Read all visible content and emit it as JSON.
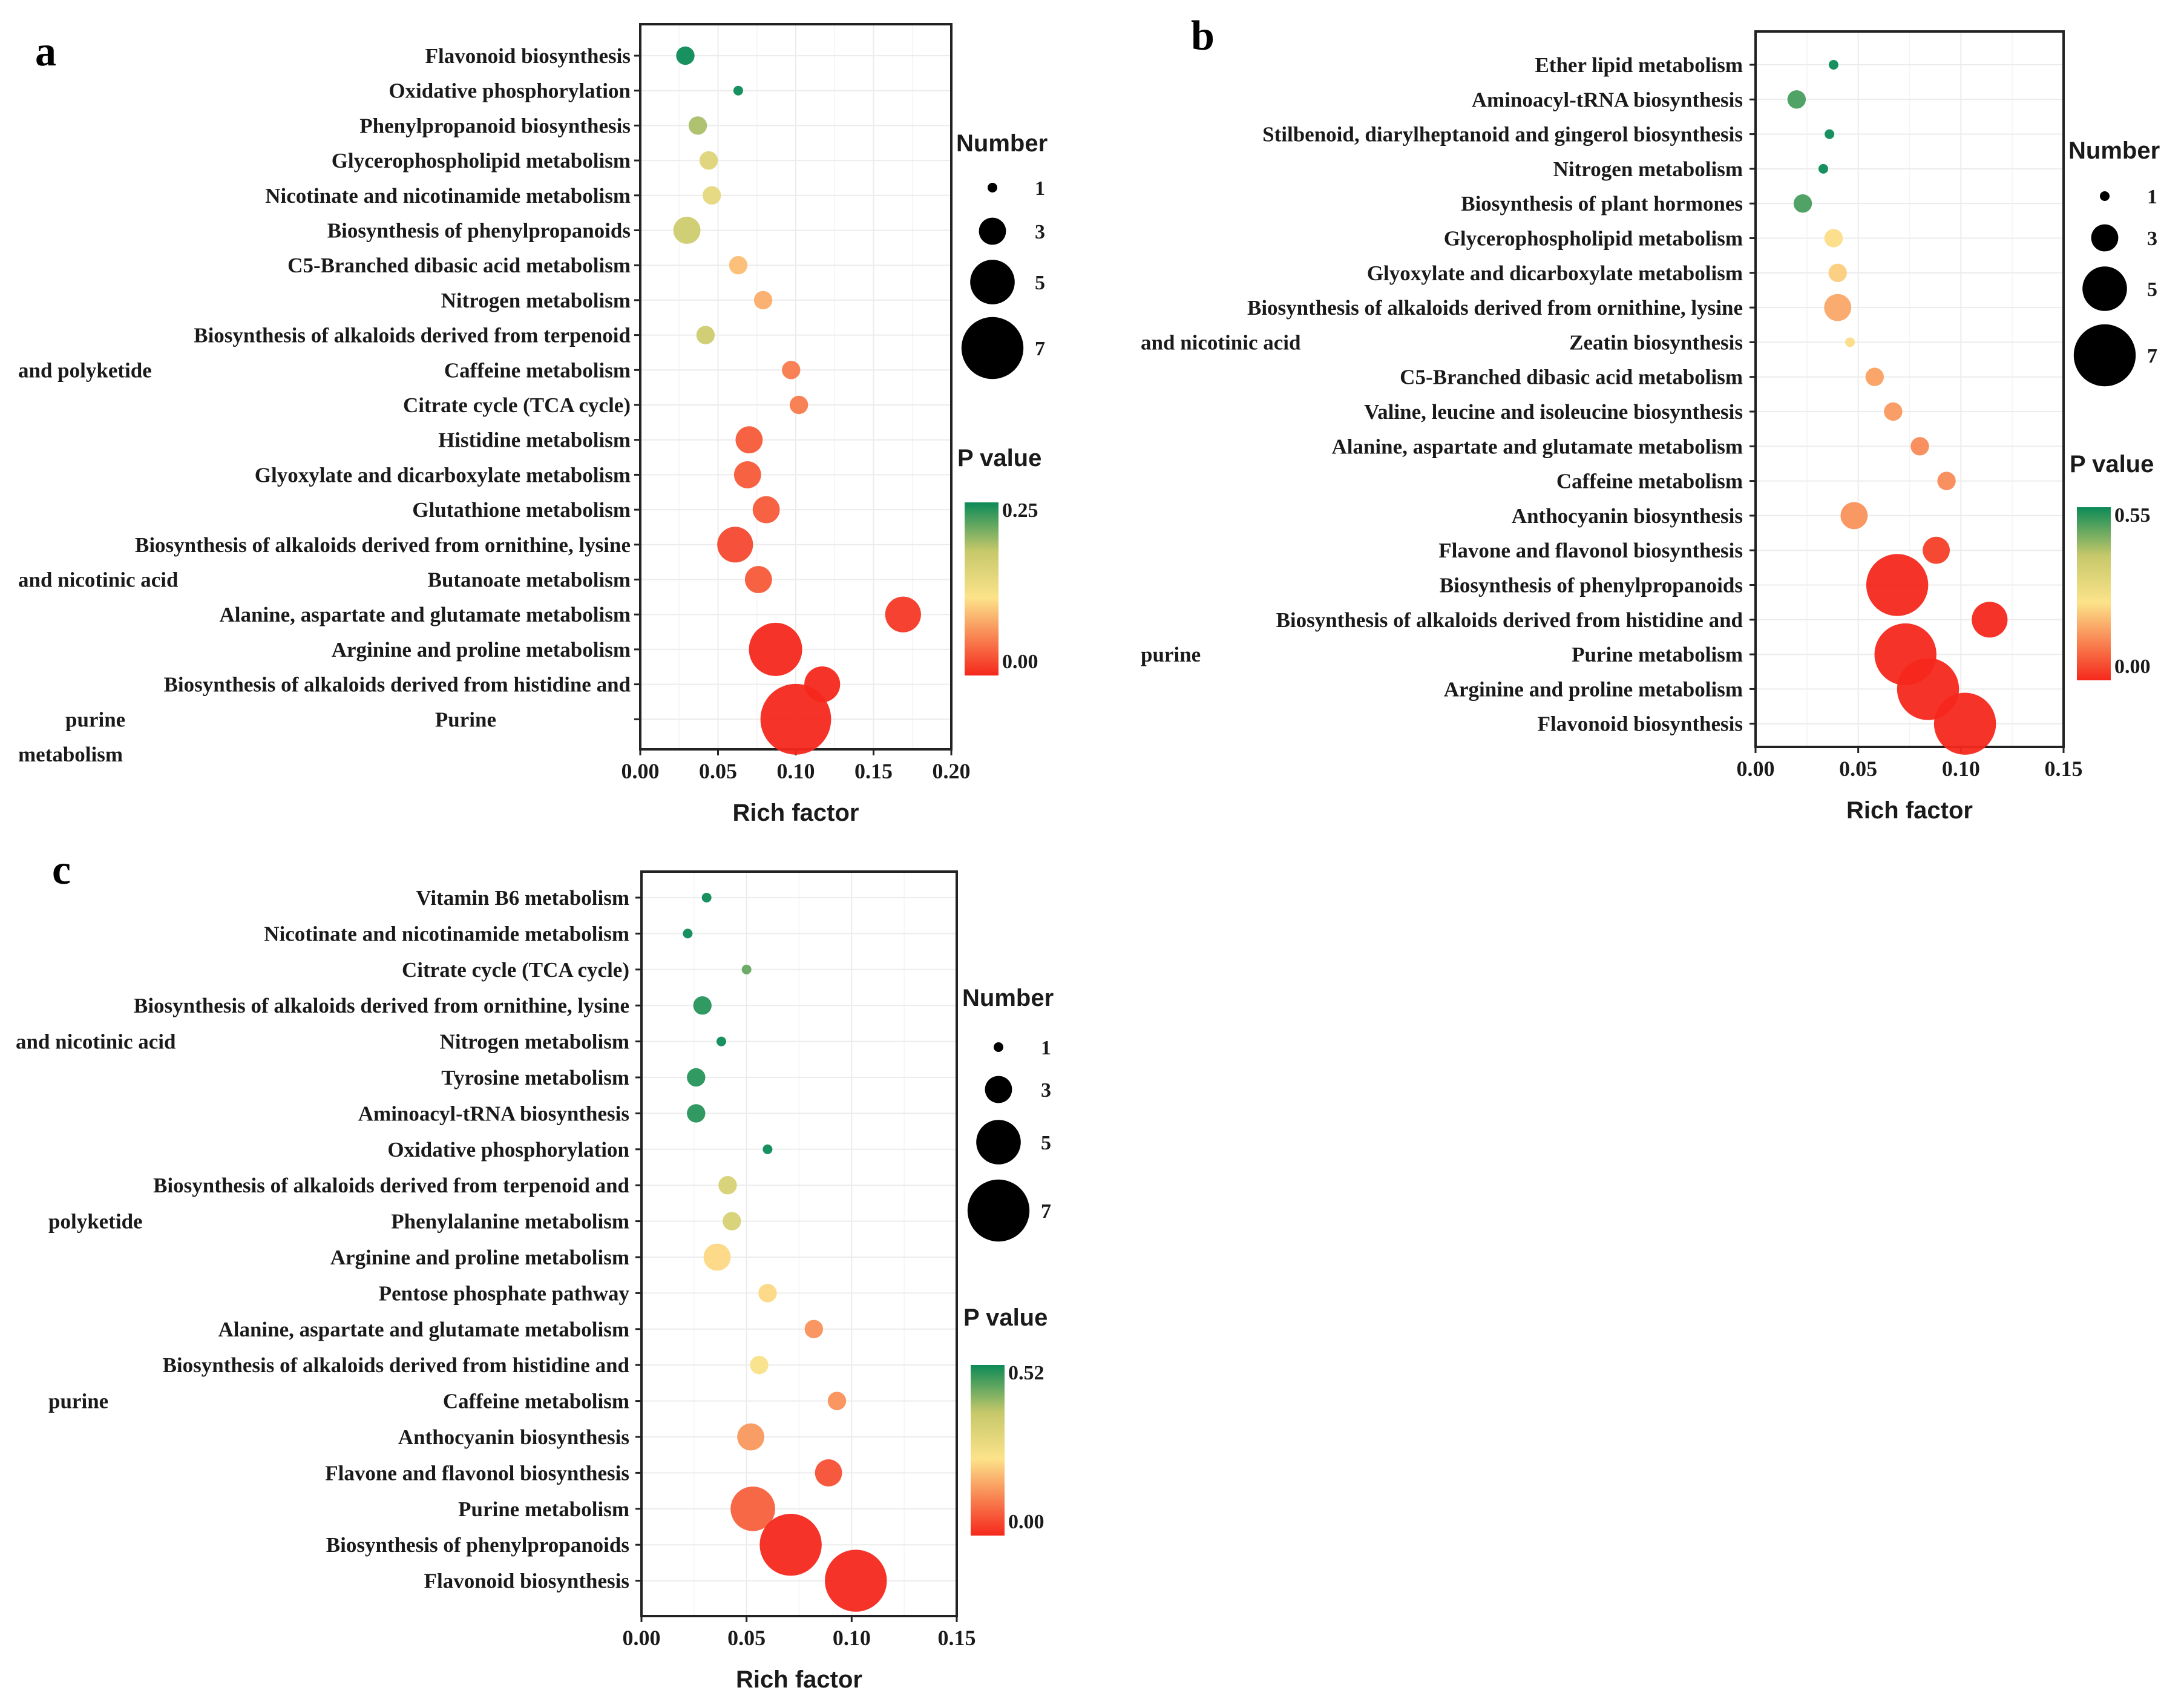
{
  "chart_data": [
    {
      "panel": "a",
      "type": "scatter",
      "xlabel": "Rich factor",
      "xticks": [
        "0.00",
        "0.05",
        "0.10",
        "0.15",
        "0.20"
      ],
      "xlim": [
        0,
        0.2
      ],
      "size_legend": {
        "title": "Number",
        "values": [
          "1",
          "3",
          "5",
          "7"
        ]
      },
      "color_legend": {
        "title": "P value",
        "max_label": "0.25",
        "min_label": "0.00"
      },
      "pathways": [
        {
          "name": "Flavonoid biosynthesis",
          "rich_factor": 0.029,
          "number": 2,
          "p_value": 0.25
        },
        {
          "name": "Oxidative phosphorylation",
          "rich_factor": 0.063,
          "number": 1,
          "p_value": 0.25
        },
        {
          "name": "Phenylpropanoid biosynthesis",
          "rich_factor": 0.037,
          "number": 2,
          "p_value": 0.19
        },
        {
          "name": "Glycerophospholipid metabolism",
          "rich_factor": 0.044,
          "number": 2,
          "p_value": 0.15
        },
        {
          "name": "Nicotinate and nicotinamide metabolism",
          "rich_factor": 0.046,
          "number": 2,
          "p_value": 0.14
        },
        {
          "name": "Biosynthesis of phenylpropanoids",
          "rich_factor": 0.03,
          "number": 3,
          "p_value": 0.17
        },
        {
          "name": "C5-Branched dibasic acid metabolism",
          "rich_factor": 0.063,
          "number": 2,
          "p_value": 0.09
        },
        {
          "name": "Nitrogen metabolism",
          "rich_factor": 0.079,
          "number": 2,
          "p_value": 0.08
        },
        {
          "name": "Biosynthesis of alkaloids derived from terpenoid and polyketide",
          "rich_factor": 0.042,
          "number": 2,
          "p_value": 0.17
        },
        {
          "name": "Caffeine metabolism",
          "rich_factor": 0.097,
          "number": 2,
          "p_value": 0.05
        },
        {
          "name": "Citrate cycle (TCA cycle)",
          "rich_factor": 0.102,
          "number": 2,
          "p_value": 0.05
        },
        {
          "name": "Histidine metabolism",
          "rich_factor": 0.07,
          "number": 3,
          "p_value": 0.03
        },
        {
          "name": "Glyoxylate and dicarboxylate metabolism",
          "rich_factor": 0.069,
          "number": 3,
          "p_value": 0.03
        },
        {
          "name": "Glutathione metabolism",
          "rich_factor": 0.081,
          "number": 3,
          "p_value": 0.03
        },
        {
          "name": "Biosynthesis of alkaloids derived from ornithine, lysine and nicotinic acid",
          "rich_factor": 0.061,
          "number": 4,
          "p_value": 0.02
        },
        {
          "name": "Butanoate metabolism",
          "rich_factor": 0.076,
          "number": 3,
          "p_value": 0.03
        },
        {
          "name": "Alanine, aspartate and glutamate metabolism",
          "rich_factor": 0.169,
          "number": 4,
          "p_value": 0.01
        },
        {
          "name": "Arginine and proline metabolism",
          "rich_factor": 0.087,
          "number": 6,
          "p_value": 0.0
        },
        {
          "name": "Biosynthesis of alkaloids derived from histidine and purine",
          "rich_factor": 0.117,
          "number": 4,
          "p_value": 0.0
        },
        {
          "name": "Purine metabolism",
          "rich_factor": 0.1,
          "number": 8,
          "p_value": 0.0
        }
      ],
      "label_lines": [
        [
          {
            "text": "Flavonoid biosynthesis"
          }
        ],
        [
          {
            "text": "Oxidative phosphorylation"
          }
        ],
        [
          {
            "text": "Phenylpropanoid biosynthesis"
          }
        ],
        [
          {
            "text": "Glycerophospholipid metabolism"
          }
        ],
        [
          {
            "text": "Nicotinate and nicotinamide metabolism"
          }
        ],
        [
          {
            "text": "Biosynthesis of phenylpropanoids"
          }
        ],
        [
          {
            "text": "C5-Branched dibasic acid metabolism"
          }
        ],
        [
          {
            "text": "Nitrogen metabolism"
          }
        ],
        [
          {
            "text": "Biosynthesis of alkaloids derived from terpenoid"
          }
        ],
        [
          {
            "text": "and polyketide",
            "side": "left"
          },
          {
            "text": "Caffeine metabolism"
          }
        ],
        [
          {
            "text": "Citrate cycle (TCA cycle)"
          }
        ],
        [
          {
            "text": "Histidine metabolism"
          }
        ],
        [
          {
            "text": "Glyoxylate and dicarboxylate metabolism"
          }
        ],
        [
          {
            "text": "Glutathione metabolism"
          }
        ],
        [
          {
            "text": "Biosynthesis of alkaloids derived from ornithine, lysine"
          }
        ],
        [
          {
            "text": "and nicotinic acid",
            "side": "left"
          },
          {
            "text": "Butanoate metabolism"
          }
        ],
        [
          {
            "text": "Alanine, aspartate and glutamate metabolism"
          }
        ],
        [
          {
            "text": "Arginine and proline metabolism"
          }
        ],
        [
          {
            "text": "Biosynthesis of alkaloids derived from histidine and"
          }
        ],
        [
          {
            "text": "purine",
            "side": "left2"
          },
          {
            "text": "Purine",
            "side": "mid"
          }
        ],
        [
          {
            "text": "metabolism",
            "side": "left"
          }
        ]
      ]
    },
    {
      "panel": "b",
      "type": "scatter",
      "xlabel": "Rich factor",
      "xticks": [
        "0.00",
        "0.05",
        "0.10",
        "0.15"
      ],
      "xlim": [
        0,
        0.15
      ],
      "size_legend": {
        "title": "Number",
        "values": [
          "1",
          "3",
          "5",
          "7"
        ]
      },
      "color_legend": {
        "title": "P value",
        "max_label": "0.55",
        "min_label": "0.00"
      },
      "pathways": [
        {
          "name": "Ether lipid metabolism",
          "rich_factor": 0.038,
          "number": 1,
          "p_value": 0.55
        },
        {
          "name": "Aminoacyl-tRNA biosynthesis",
          "rich_factor": 0.02,
          "number": 2,
          "p_value": 0.5
        },
        {
          "name": "Stilbenoid, diarylheptanoid and gingerol biosynthesis",
          "rich_factor": 0.036,
          "number": 1,
          "p_value": 0.55
        },
        {
          "name": "Nitrogen metabolism",
          "rich_factor": 0.033,
          "number": 1,
          "p_value": 0.55
        },
        {
          "name": "Biosynthesis of plant hormones",
          "rich_factor": 0.023,
          "number": 2,
          "p_value": 0.5
        },
        {
          "name": "Glycerophospholipid metabolism",
          "rich_factor": 0.038,
          "number": 2,
          "p_value": 0.24
        },
        {
          "name": "Glyoxylate and dicarboxylate metabolism",
          "rich_factor": 0.04,
          "number": 2,
          "p_value": 0.22
        },
        {
          "name": "Biosynthesis of alkaloids derived from ornithine, lysine and nicotinic acid",
          "rich_factor": 0.04,
          "number": 3,
          "p_value": 0.17
        },
        {
          "name": "Zeatin biosynthesis",
          "rich_factor": 0.046,
          "number": 1,
          "p_value": 0.24
        },
        {
          "name": "C5-Branched dibasic acid metabolism",
          "rich_factor": 0.058,
          "number": 2,
          "p_value": 0.16
        },
        {
          "name": "Valine, leucine and isoleucine biosynthesis",
          "rich_factor": 0.067,
          "number": 2,
          "p_value": 0.15
        },
        {
          "name": "Alanine, aspartate and glutamate metabolism",
          "rich_factor": 0.08,
          "number": 2,
          "p_value": 0.13
        },
        {
          "name": "Caffeine metabolism",
          "rich_factor": 0.093,
          "number": 2,
          "p_value": 0.13
        },
        {
          "name": "Anthocyanin biosynthesis",
          "rich_factor": 0.048,
          "number": 3,
          "p_value": 0.14
        },
        {
          "name": "Flavone and flavonol biosynthesis",
          "rich_factor": 0.088,
          "number": 3,
          "p_value": 0.03
        },
        {
          "name": "Biosynthesis of phenylpropanoids",
          "rich_factor": 0.069,
          "number": 7,
          "p_value": 0.0
        },
        {
          "name": "Biosynthesis of alkaloids derived from histidine and purine",
          "rich_factor": 0.114,
          "number": 4,
          "p_value": 0.0
        },
        {
          "name": "Purine metabolism",
          "rich_factor": 0.073,
          "number": 7,
          "p_value": 0.0
        },
        {
          "name": "Arginine and proline metabolism",
          "rich_factor": 0.084,
          "number": 7,
          "p_value": 0.0
        },
        {
          "name": "Flavonoid biosynthesis",
          "rich_factor": 0.102,
          "number": 7,
          "p_value": 0.0
        }
      ],
      "label_lines": [
        [
          {
            "text": "Ether lipid metabolism"
          }
        ],
        [
          {
            "text": "Aminoacyl-tRNA biosynthesis"
          }
        ],
        [
          {
            "text": "Stilbenoid, diarylheptanoid and gingerol biosynthesis"
          }
        ],
        [
          {
            "text": "Nitrogen metabolism"
          }
        ],
        [
          {
            "text": "Biosynthesis of plant hormones"
          }
        ],
        [
          {
            "text": "Glycerophospholipid metabolism"
          }
        ],
        [
          {
            "text": "Glyoxylate and dicarboxylate metabolism"
          }
        ],
        [
          {
            "text": "Biosynthesis of alkaloids derived from ornithine, lysine"
          }
        ],
        [
          {
            "text": "and nicotinic acid",
            "side": "left"
          },
          {
            "text": "Zeatin biosynthesis"
          }
        ],
        [
          {
            "text": "C5-Branched dibasic acid metabolism"
          }
        ],
        [
          {
            "text": "Valine, leucine and isoleucine biosynthesis"
          }
        ],
        [
          {
            "text": "Alanine, aspartate and glutamate metabolism"
          }
        ],
        [
          {
            "text": "Caffeine metabolism"
          }
        ],
        [
          {
            "text": "Anthocyanin biosynthesis"
          }
        ],
        [
          {
            "text": "Flavone and flavonol biosynthesis"
          }
        ],
        [
          {
            "text": "Biosynthesis of phenylpropanoids"
          }
        ],
        [
          {
            "text": "Biosynthesis of alkaloids derived from histidine and"
          }
        ],
        [
          {
            "text": "purine",
            "side": "left"
          },
          {
            "text": "Purine metabolism"
          }
        ],
        [
          {
            "text": "Arginine and proline metabolism"
          }
        ],
        [
          {
            "text": "Flavonoid biosynthesis"
          }
        ]
      ]
    },
    {
      "panel": "c",
      "type": "scatter",
      "xlabel": "Rich factor",
      "xticks": [
        "0.00",
        "0.05",
        "0.10",
        "0.15"
      ],
      "xlim": [
        0,
        0.15
      ],
      "size_legend": {
        "title": "Number",
        "values": [
          "1",
          "3",
          "5",
          "7"
        ]
      },
      "color_legend": {
        "title": "P value",
        "max_label": "0.52",
        "min_label": "0.00"
      },
      "pathways": [
        {
          "name": "Vitamin B6 metabolism",
          "rich_factor": 0.031,
          "number": 1,
          "p_value": 0.52
        },
        {
          "name": "Nicotinate and nicotinamide metabolism",
          "rich_factor": 0.022,
          "number": 1,
          "p_value": 0.52
        },
        {
          "name": "Citrate cycle (TCA cycle)",
          "rich_factor": 0.05,
          "number": 1,
          "p_value": 0.45
        },
        {
          "name": "Biosynthesis of alkaloids derived from ornithine, lysine and nicotinic acid",
          "rich_factor": 0.029,
          "number": 2,
          "p_value": 0.5
        },
        {
          "name": "Nitrogen metabolism",
          "rich_factor": 0.038,
          "number": 1,
          "p_value": 0.52
        },
        {
          "name": "Tyrosine metabolism",
          "rich_factor": 0.026,
          "number": 2,
          "p_value": 0.5
        },
        {
          "name": "Aminoacyl-tRNA biosynthesis",
          "rich_factor": 0.026,
          "number": 2,
          "p_value": 0.5
        },
        {
          "name": "Oxidative phosphorylation",
          "rich_factor": 0.06,
          "number": 1,
          "p_value": 0.52
        },
        {
          "name": "Biosynthesis of alkaloids derived from terpenoid and polyketide",
          "rich_factor": 0.041,
          "number": 2,
          "p_value": 0.33
        },
        {
          "name": "Phenylalanine metabolism",
          "rich_factor": 0.043,
          "number": 2,
          "p_value": 0.33
        },
        {
          "name": "Arginine and proline metabolism",
          "rich_factor": 0.036,
          "number": 3,
          "p_value": 0.22
        },
        {
          "name": "Pentose phosphate pathway",
          "rich_factor": 0.06,
          "number": 2,
          "p_value": 0.22
        },
        {
          "name": "Alanine, aspartate and glutamate metabolism",
          "rich_factor": 0.082,
          "number": 2,
          "p_value": 0.13
        },
        {
          "name": "Biosynthesis of alkaloids derived from histidine and purine",
          "rich_factor": 0.056,
          "number": 2,
          "p_value": 0.24
        },
        {
          "name": "Caffeine metabolism",
          "rich_factor": 0.093,
          "number": 2,
          "p_value": 0.13
        },
        {
          "name": "Anthocyanin biosynthesis",
          "rich_factor": 0.052,
          "number": 3,
          "p_value": 0.14
        },
        {
          "name": "Flavone and flavonol biosynthesis",
          "rich_factor": 0.089,
          "number": 3,
          "p_value": 0.05
        },
        {
          "name": "Purine metabolism",
          "rich_factor": 0.053,
          "number": 5,
          "p_value": 0.07
        },
        {
          "name": "Biosynthesis of phenylpropanoids",
          "rich_factor": 0.071,
          "number": 7,
          "p_value": 0.0
        },
        {
          "name": "Flavonoid biosynthesis",
          "rich_factor": 0.102,
          "number": 7,
          "p_value": 0.0
        }
      ],
      "label_lines": [
        [
          {
            "text": "Vitamin B6 metabolism"
          }
        ],
        [
          {
            "text": "Nicotinate and nicotinamide metabolism"
          }
        ],
        [
          {
            "text": "Citrate cycle (TCA cycle)"
          }
        ],
        [
          {
            "text": "Biosynthesis of alkaloids derived from ornithine, lysine"
          }
        ],
        [
          {
            "text": "and nicotinic acid",
            "side": "left"
          },
          {
            "text": "Nitrogen metabolism"
          }
        ],
        [
          {
            "text": "Tyrosine metabolism"
          }
        ],
        [
          {
            "text": "Aminoacyl-tRNA biosynthesis"
          }
        ],
        [
          {
            "text": "Oxidative phosphorylation"
          }
        ],
        [
          {
            "text": "Biosynthesis of alkaloids derived from terpenoid and"
          }
        ],
        [
          {
            "text": "polyketide",
            "side": "left2"
          },
          {
            "text": "Phenylalanine metabolism"
          }
        ],
        [
          {
            "text": "Arginine and proline metabolism"
          }
        ],
        [
          {
            "text": "Pentose phosphate pathway"
          }
        ],
        [
          {
            "text": "Alanine, aspartate and glutamate metabolism"
          }
        ],
        [
          {
            "text": "Biosynthesis of alkaloids derived from histidine and"
          }
        ],
        [
          {
            "text": "purine",
            "side": "left2"
          },
          {
            "text": "Caffeine metabolism"
          }
        ],
        [
          {
            "text": "Anthocyanin biosynthesis"
          }
        ],
        [
          {
            "text": "Flavone and flavonol biosynthesis"
          }
        ],
        [
          {
            "text": "Purine metabolism"
          }
        ],
        [
          {
            "text": "Biosynthesis of phenylpropanoids"
          }
        ],
        [
          {
            "text": "Flavonoid biosynthesis"
          }
        ]
      ]
    }
  ],
  "colors": {
    "p_low": "#f5281c",
    "p_mid": "#fce38a",
    "p_high": "#0c8a57",
    "grid": "#ececec",
    "frame": "#222222"
  }
}
